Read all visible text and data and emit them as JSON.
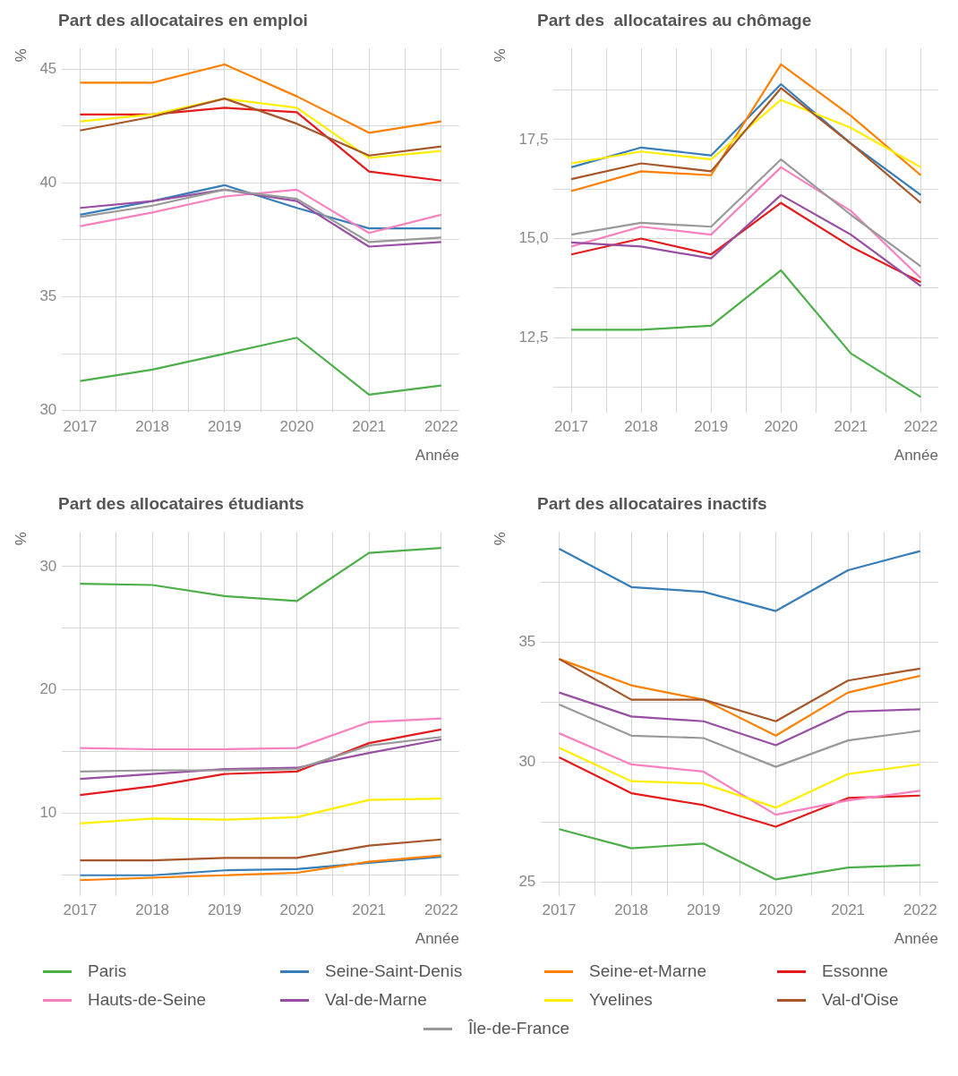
{
  "chart_data": [
    {
      "type": "line",
      "title": "Part des allocataires en emploi",
      "xlabel": "Année",
      "ylabel": "%",
      "x": [
        2017,
        2018,
        2019,
        2020,
        2021,
        2022
      ],
      "xlim": [
        2016.75,
        2022.25
      ],
      "xticks": [
        2017,
        {
          "value": 2017.5,
          "label": null
        },
        2018,
        {
          "value": 2018.5,
          "label": null
        },
        2019,
        {
          "value": 2019.5,
          "label": null
        },
        2020,
        {
          "value": 2020.5,
          "label": null
        },
        2021,
        {
          "value": 2021.5,
          "label": null
        },
        2022
      ],
      "ylim": [
        29.9,
        45.9
      ],
      "yticks": [
        30,
        {
          "value": 32.5,
          "label": null
        },
        35,
        {
          "value": 37.5,
          "label": null
        },
        40,
        {
          "value": 42.5,
          "label": null
        },
        45
      ],
      "grid": true,
      "legend": "bottom",
      "series": [
        {
          "name": "Paris",
          "color": "#4daf4a",
          "values": [
            31.3,
            31.8,
            32.5,
            33.2,
            30.7,
            31.1
          ]
        },
        {
          "name": "Seine-Saint-Denis",
          "color": "#377eb8",
          "values": [
            38.6,
            39.2,
            39.9,
            38.9,
            38.0,
            38.0
          ]
        },
        {
          "name": "Seine-et-Marne",
          "color": "#ff7f00",
          "values": [
            44.4,
            44.4,
            45.2,
            43.8,
            42.2,
            42.7
          ]
        },
        {
          "name": "Essonne",
          "color": "#e41a1c",
          "values": [
            43.0,
            43.0,
            43.3,
            43.1,
            40.5,
            40.1
          ]
        },
        {
          "name": "Hauts-de-Seine",
          "color": "#f781bf",
          "values": [
            38.1,
            38.7,
            39.4,
            39.7,
            37.8,
            38.6
          ]
        },
        {
          "name": "Val-de-Marne",
          "color": "#984ea3",
          "values": [
            38.9,
            39.2,
            39.7,
            39.2,
            37.2,
            37.4
          ]
        },
        {
          "name": "Yvelines",
          "color": "#ffee00",
          "values": [
            42.7,
            43.0,
            43.7,
            43.3,
            41.1,
            41.4
          ]
        },
        {
          "name": "Val-d'Oise",
          "color": "#a65628",
          "values": [
            42.3,
            42.9,
            43.7,
            42.6,
            41.2,
            41.6
          ]
        },
        {
          "name": "Île-de-France",
          "color": "#999999",
          "values": [
            38.5,
            39.0,
            39.7,
            39.3,
            37.4,
            37.6
          ]
        }
      ]
    },
    {
      "type": "line",
      "title": "Part des  allocataires au chômage",
      "xlabel": "Année",
      "ylabel": "%",
      "x": [
        2017,
        2018,
        2019,
        2020,
        2021,
        2022
      ],
      "xlim": [
        2016.75,
        2022.25
      ],
      "xticks": [
        2017,
        {
          "value": 2017.5,
          "label": null
        },
        2018,
        {
          "value": 2018.5,
          "label": null
        },
        2019,
        {
          "value": 2019.5,
          "label": null
        },
        2020,
        {
          "value": 2020.5,
          "label": null
        },
        2021,
        {
          "value": 2021.5,
          "label": null
        },
        2022
      ],
      "ylim": [
        10.6,
        19.8
      ],
      "yticks": [
        {
          "value": 11.25,
          "label": null
        },
        {
          "value": 12.5,
          "label": "12,5"
        },
        {
          "value": 13.75,
          "label": null
        },
        {
          "value": 15,
          "label": "15,0"
        },
        {
          "value": 16.25,
          "label": null
        },
        {
          "value": 17.5,
          "label": "17,5"
        },
        {
          "value": 18.75,
          "label": null
        }
      ],
      "grid": true,
      "series": [
        {
          "color": "#4daf4a",
          "values": [
            12.7,
            12.7,
            12.8,
            14.2,
            12.1,
            11.0
          ]
        },
        {
          "color": "#377eb8",
          "values": [
            16.8,
            17.3,
            17.1,
            18.9,
            17.4,
            16.1
          ]
        },
        {
          "color": "#ff7f00",
          "values": [
            16.2,
            16.7,
            16.6,
            19.4,
            18.1,
            16.6
          ]
        },
        {
          "color": "#e41a1c",
          "values": [
            14.6,
            15.0,
            14.6,
            15.9,
            14.8,
            13.9
          ]
        },
        {
          "color": "#f781bf",
          "values": [
            14.8,
            15.3,
            15.1,
            16.8,
            15.7,
            14.0
          ]
        },
        {
          "color": "#984ea3",
          "values": [
            14.9,
            14.8,
            14.5,
            16.1,
            15.1,
            13.8
          ]
        },
        {
          "color": "#ffee00",
          "values": [
            16.9,
            17.2,
            17.0,
            18.5,
            17.8,
            16.8
          ]
        },
        {
          "color": "#a65628",
          "values": [
            16.5,
            16.9,
            16.7,
            18.8,
            17.4,
            15.9
          ]
        },
        {
          "color": "#999999",
          "values": [
            15.1,
            15.4,
            15.3,
            17.0,
            15.6,
            14.3
          ]
        }
      ]
    },
    {
      "type": "line",
      "title": "Part des allocataires étudiants",
      "xlabel": "Année",
      "ylabel": "%",
      "x": [
        2017,
        2018,
        2019,
        2020,
        2021,
        2022
      ],
      "xlim": [
        2016.75,
        2022.25
      ],
      "xticks": [
        2017,
        {
          "value": 2017.5,
          "label": null
        },
        2018,
        {
          "value": 2018.5,
          "label": null
        },
        2019,
        {
          "value": 2019.5,
          "label": null
        },
        2020,
        {
          "value": 2020.5,
          "label": null
        },
        2021,
        {
          "value": 2021.5,
          "label": null
        },
        2022
      ],
      "ylim": [
        3.3,
        32.8
      ],
      "yticks": [
        {
          "value": 5,
          "label": null
        },
        10,
        {
          "value": 15,
          "label": null
        },
        20,
        {
          "value": 25,
          "label": null
        },
        30
      ],
      "grid": true,
      "series": [
        {
          "color": "#4daf4a",
          "values": [
            28.6,
            28.5,
            27.6,
            27.2,
            31.1,
            31.5
          ]
        },
        {
          "color": "#377eb8",
          "values": [
            5.0,
            5.0,
            5.4,
            5.5,
            6.0,
            6.5
          ]
        },
        {
          "color": "#ff7f00",
          "values": [
            4.6,
            4.8,
            5.0,
            5.2,
            6.1,
            6.6
          ]
        },
        {
          "color": "#e41a1c",
          "values": [
            11.5,
            12.2,
            13.2,
            13.4,
            15.7,
            16.8
          ]
        },
        {
          "color": "#f781bf",
          "values": [
            15.3,
            15.2,
            15.2,
            15.3,
            17.4,
            17.7
          ]
        },
        {
          "color": "#984ea3",
          "values": [
            12.8,
            13.2,
            13.6,
            13.7,
            14.9,
            16.0
          ]
        },
        {
          "color": "#ffee00",
          "values": [
            9.2,
            9.6,
            9.5,
            9.7,
            11.1,
            11.2
          ]
        },
        {
          "color": "#a65628",
          "values": [
            6.2,
            6.2,
            6.4,
            6.4,
            7.4,
            7.9
          ]
        },
        {
          "color": "#999999",
          "values": [
            13.4,
            13.5,
            13.5,
            13.6,
            15.5,
            16.2
          ]
        }
      ]
    },
    {
      "type": "line",
      "title": "Part des allocataires inactifs",
      "xlabel": "Année",
      "ylabel": "%",
      "x": [
        2017,
        2018,
        2019,
        2020,
        2021,
        2022
      ],
      "xlim": [
        2016.75,
        2022.25
      ],
      "xticks": [
        2017,
        {
          "value": 2017.5,
          "label": null
        },
        2018,
        {
          "value": 2018.5,
          "label": null
        },
        2019,
        {
          "value": 2019.5,
          "label": null
        },
        2020,
        {
          "value": 2020.5,
          "label": null
        },
        2021,
        {
          "value": 2021.5,
          "label": null
        },
        2022
      ],
      "ylim": [
        24.4,
        39.6
      ],
      "yticks": [
        25,
        {
          "value": 27.5,
          "label": null
        },
        30,
        {
          "value": 32.5,
          "label": null
        },
        35,
        {
          "value": 37.5,
          "label": null
        }
      ],
      "grid": true,
      "series": [
        {
          "color": "#4daf4a",
          "values": [
            27.2,
            26.4,
            26.6,
            25.1,
            25.6,
            25.7
          ]
        },
        {
          "color": "#377eb8",
          "values": [
            38.9,
            37.3,
            37.1,
            36.3,
            38.0,
            38.8
          ]
        },
        {
          "color": "#ff7f00",
          "values": [
            34.3,
            33.2,
            32.6,
            31.1,
            32.9,
            33.6
          ]
        },
        {
          "color": "#e41a1c",
          "values": [
            30.2,
            28.7,
            28.2,
            27.3,
            28.5,
            28.6
          ]
        },
        {
          "color": "#f781bf",
          "values": [
            31.2,
            29.9,
            29.6,
            27.8,
            28.4,
            28.8
          ]
        },
        {
          "color": "#984ea3",
          "values": [
            32.9,
            31.9,
            31.7,
            30.7,
            32.1,
            32.2
          ]
        },
        {
          "color": "#ffee00",
          "values": [
            30.6,
            29.2,
            29.1,
            28.1,
            29.5,
            29.9
          ]
        },
        {
          "color": "#a65628",
          "values": [
            34.3,
            32.6,
            32.6,
            31.7,
            33.4,
            33.9
          ]
        },
        {
          "color": "#999999",
          "values": [
            32.4,
            31.1,
            31.0,
            29.8,
            30.9,
            31.3
          ]
        }
      ]
    }
  ]
}
